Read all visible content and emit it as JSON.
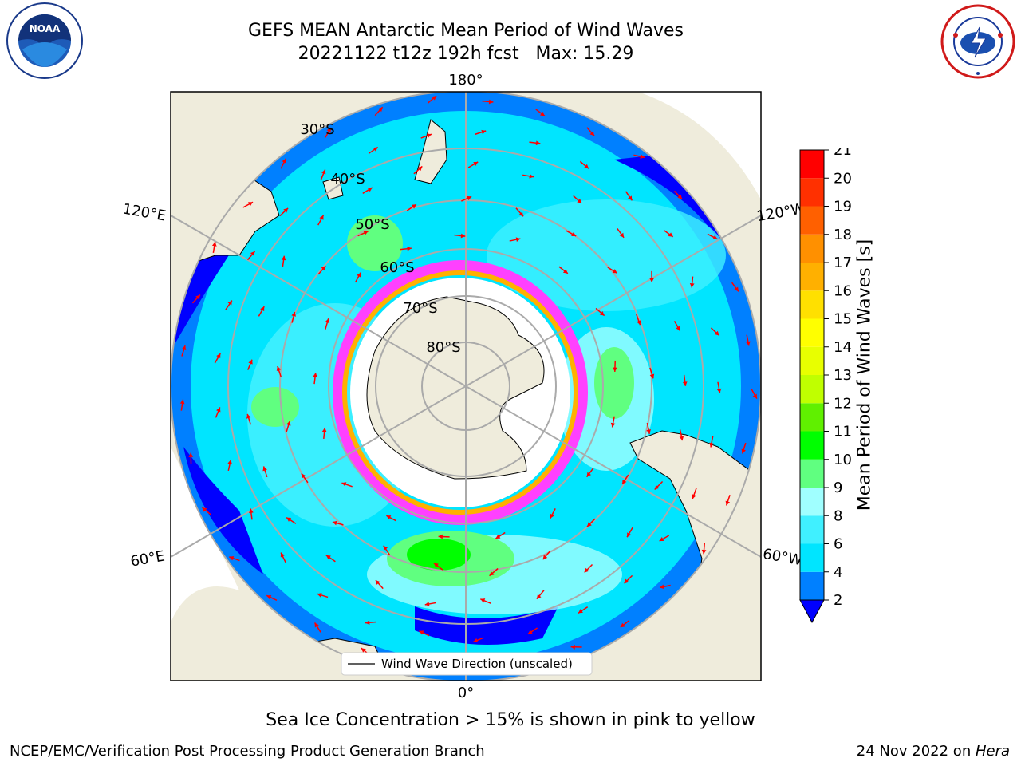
{
  "header": {
    "title_line1": "GEFS MEAN Antarctic Mean Period of Wind Waves",
    "title_line2": "20221122 t12z 192h fcst   Max: 15.29"
  },
  "logos": {
    "left": {
      "icon": "noaa-logo",
      "text": "NOAA"
    },
    "right": {
      "icon": "national-weather-service-logo",
      "text": "NATIONAL WEATHER SERVICE"
    }
  },
  "map": {
    "projection": "south-polar-stereographic",
    "longitude_labels": {
      "top": "180°",
      "bottom": "0°",
      "left_upper": "120°E",
      "left_lower": "60°E",
      "right_upper": "120°W",
      "right_lower": "60°W"
    },
    "latitude_labels": [
      "30°S",
      "40°S",
      "50°S",
      "60°S",
      "70°S",
      "80°S"
    ],
    "legend": "Wind Wave Direction (unscaled)",
    "colors": {
      "land": "#efecdc",
      "ice": "#ffffff",
      "arrows": "#ff0000",
      "gridlines": "#aaaaaa"
    }
  },
  "colorbar": {
    "label": "Mean Period of Wind Waves [s]",
    "ticks": [
      "2",
      "4",
      "6",
      "8",
      "9",
      "10",
      "11",
      "12",
      "13",
      "14",
      "15",
      "16",
      "17",
      "18",
      "19",
      "20",
      "21"
    ],
    "bins": [
      {
        "from": 2,
        "to": 4,
        "color": "#0080ff"
      },
      {
        "from": 4,
        "to": 6,
        "color": "#00e5ff"
      },
      {
        "from": 6,
        "to": 8,
        "color": "#40f0ff"
      },
      {
        "from": 8,
        "to": 9,
        "color": "#a0ffff"
      },
      {
        "from": 9,
        "to": 10,
        "color": "#60ff80"
      },
      {
        "from": 10,
        "to": 11,
        "color": "#00ff00"
      },
      {
        "from": 11,
        "to": 12,
        "color": "#60f000"
      },
      {
        "from": 12,
        "to": 13,
        "color": "#c0ff00"
      },
      {
        "from": 13,
        "to": 14,
        "color": "#e8ff00"
      },
      {
        "from": 14,
        "to": 15,
        "color": "#ffff00"
      },
      {
        "from": 15,
        "to": 16,
        "color": "#ffe000"
      },
      {
        "from": 16,
        "to": 17,
        "color": "#ffb000"
      },
      {
        "from": 17,
        "to": 18,
        "color": "#ff9000"
      },
      {
        "from": 18,
        "to": 19,
        "color": "#ff6000"
      },
      {
        "from": 19,
        "to": 20,
        "color": "#ff3000"
      },
      {
        "from": 20,
        "to": 21,
        "color": "#ff0000"
      }
    ],
    "under_color": "#0000ff"
  },
  "caption": "Sea Ice Concentration > 15% is shown in pink to yellow",
  "footer": {
    "left": "NCEP/EMC/Verification Post Processing Product Generation Branch",
    "right_date": "24 Nov 2022 on ",
    "right_host": "Hera"
  }
}
